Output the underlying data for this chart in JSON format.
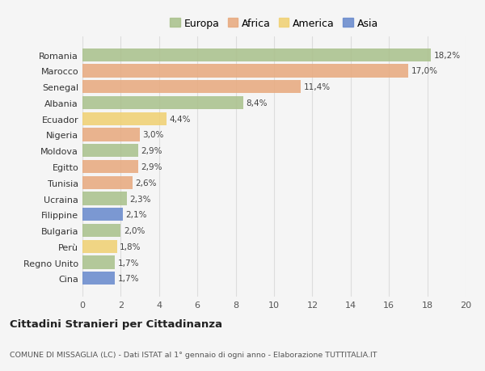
{
  "countries": [
    "Romania",
    "Marocco",
    "Senegal",
    "Albania",
    "Ecuador",
    "Nigeria",
    "Moldova",
    "Egitto",
    "Tunisia",
    "Ucraina",
    "Filippine",
    "Bulgaria",
    "Perù",
    "Regno Unito",
    "Cina"
  ],
  "values": [
    18.2,
    17.0,
    11.4,
    8.4,
    4.4,
    3.0,
    2.9,
    2.9,
    2.6,
    2.3,
    2.1,
    2.0,
    1.8,
    1.7,
    1.7
  ],
  "labels": [
    "18,2%",
    "17,0%",
    "11,4%",
    "8,4%",
    "4,4%",
    "3,0%",
    "2,9%",
    "2,9%",
    "2,6%",
    "2,3%",
    "2,1%",
    "2,0%",
    "1,8%",
    "1,7%",
    "1,7%"
  ],
  "continents": [
    "Europa",
    "Africa",
    "Africa",
    "Europa",
    "America",
    "Africa",
    "Europa",
    "Africa",
    "Africa",
    "Europa",
    "Asia",
    "Europa",
    "America",
    "Europa",
    "Asia"
  ],
  "colors": {
    "Europa": "#a8c08a",
    "Africa": "#e8a87c",
    "America": "#f0d070",
    "Asia": "#6688cc"
  },
  "legend_order": [
    "Europa",
    "Africa",
    "America",
    "Asia"
  ],
  "title": "Cittadini Stranieri per Cittadinanza",
  "subtitle": "COMUNE DI MISSAGLIA (LC) - Dati ISTAT al 1° gennaio di ogni anno - Elaborazione TUTTITALIA.IT",
  "xlim": [
    0,
    20
  ],
  "xticks": [
    0,
    2,
    4,
    6,
    8,
    10,
    12,
    14,
    16,
    18,
    20
  ],
  "background_color": "#f5f5f5",
  "grid_color": "#dddddd"
}
